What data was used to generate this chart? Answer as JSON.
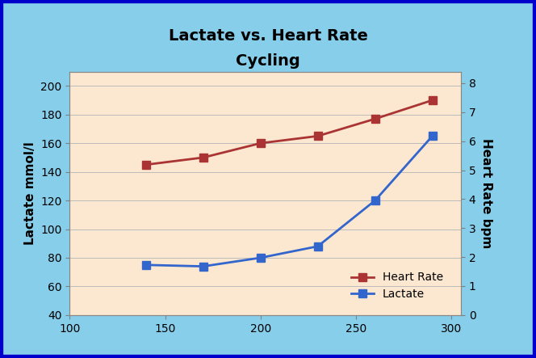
{
  "title_line1": "Lactate vs. Heart Rate",
  "title_line2": "Cycling",
  "x_values": [
    140,
    170,
    200,
    230,
    260,
    290
  ],
  "heart_rate": [
    145,
    150,
    160,
    165,
    177,
    190
  ],
  "lactate_left": [
    75,
    74,
    80,
    88,
    120,
    165
  ],
  "lactate_right": [
    1.95,
    1.92,
    2.1,
    2.37,
    4.05,
    6.2
  ],
  "xlim": [
    100,
    305
  ],
  "ylim_left": [
    40,
    210
  ],
  "ylim_right": [
    0,
    8.4
  ],
  "xticks": [
    100,
    150,
    200,
    250,
    300
  ],
  "yticks_left": [
    40,
    60,
    80,
    100,
    120,
    140,
    160,
    180,
    200
  ],
  "yticks_right": [
    0,
    1,
    2,
    3,
    4,
    5,
    6,
    7,
    8
  ],
  "ylabel_left": "Lactate mmol/l",
  "ylabel_right": "Heart Rate bpm",
  "heart_rate_color": "#aa3333",
  "lactate_color": "#3366cc",
  "plot_bg_color": "#fce8d0",
  "outer_bg_color": "#87ceeb",
  "border_color": "#0000cc",
  "grid_color": "#bbbbbb",
  "legend_hr": "Heart Rate",
  "legend_lac": "Lactate",
  "title_fontsize": 14,
  "label_fontsize": 11,
  "tick_fontsize": 10,
  "linewidth": 2.0,
  "markersize": 7
}
